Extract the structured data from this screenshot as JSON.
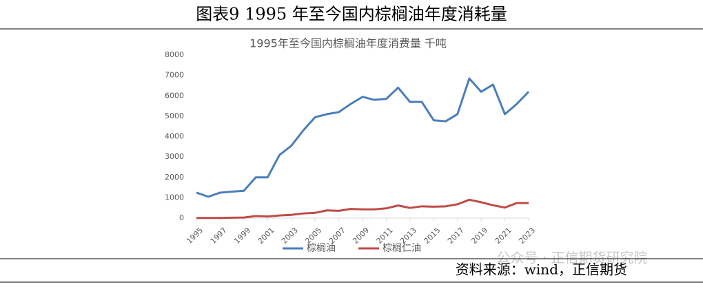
{
  "header": {
    "title": "图表9 1995 年至今国内棕榈油年度消耗量"
  },
  "chart_data": {
    "type": "line",
    "title": "1995年至今国内棕榈油年度消费量 千吨",
    "x": [
      1995,
      1996,
      1997,
      1998,
      1999,
      2000,
      2001,
      2002,
      2003,
      2004,
      2005,
      2006,
      2007,
      2008,
      2009,
      2010,
      2011,
      2012,
      2013,
      2014,
      2015,
      2016,
      2017,
      2018,
      2019,
      2020,
      2021,
      2022,
      2023
    ],
    "series": [
      {
        "name": "棕榈油",
        "color": "#4a7ebb",
        "values": [
          1250,
          1050,
          1250,
          1300,
          1340,
          2000,
          2000,
          3100,
          3550,
          4300,
          4950,
          5100,
          5200,
          5600,
          5950,
          5800,
          5850,
          6400,
          5700,
          5700,
          4800,
          4750,
          5100,
          6850,
          6200,
          6550,
          5100,
          5600,
          6200
        ]
      },
      {
        "name": "棕榈仁油",
        "color": "#be4b48",
        "values": [
          10,
          10,
          10,
          20,
          30,
          100,
          80,
          130,
          160,
          230,
          260,
          380,
          360,
          450,
          430,
          430,
          480,
          620,
          500,
          580,
          560,
          580,
          680,
          900,
          780,
          630,
          520,
          740,
          740
        ]
      }
    ],
    "xlim": [
      1995,
      2023
    ],
    "xticks": [
      1995,
      1997,
      1999,
      2001,
      2003,
      2005,
      2007,
      2009,
      2011,
      2013,
      2015,
      2017,
      2019,
      2021,
      2023
    ],
    "ylim": [
      0,
      8000
    ],
    "yticks": [
      0,
      1000,
      2000,
      3000,
      4000,
      5000,
      6000,
      7000,
      8000
    ],
    "grid": false,
    "legend": "bottom"
  },
  "watermark": "公众号 · 正信期货研究院",
  "source": "资料来源：wind，正信期货"
}
